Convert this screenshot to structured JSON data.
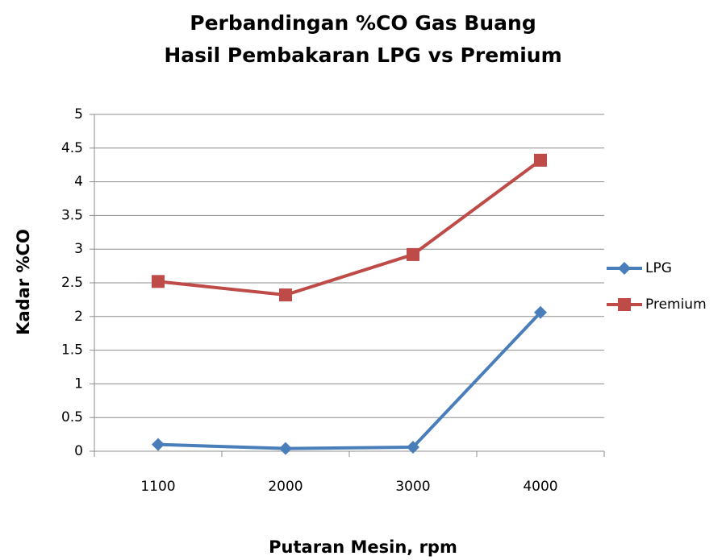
{
  "chart_data": {
    "type": "line",
    "title": [
      "Perbandingan %CO Gas Buang",
      "Hasil Pembakaran LPG vs Premium"
    ],
    "x_label": "Putaran Mesin, rpm",
    "y_label": "Kadar %CO",
    "categories": [
      "1100",
      "2000",
      "3000",
      "4000"
    ],
    "series": [
      {
        "name": "LPG",
        "color": "#4a7ebb",
        "marker": "diamond",
        "values": [
          0.1,
          0.04,
          0.06,
          2.06
        ]
      },
      {
        "name": "Premium",
        "color": "#be4b48",
        "marker": "square",
        "values": [
          2.52,
          2.32,
          2.92,
          4.32
        ]
      }
    ],
    "ylim": [
      0,
      5
    ],
    "yticks": [
      0,
      0.5,
      1,
      1.5,
      2,
      2.5,
      3,
      3.5,
      4,
      4.5,
      5
    ],
    "grid": true,
    "legend": "right"
  }
}
